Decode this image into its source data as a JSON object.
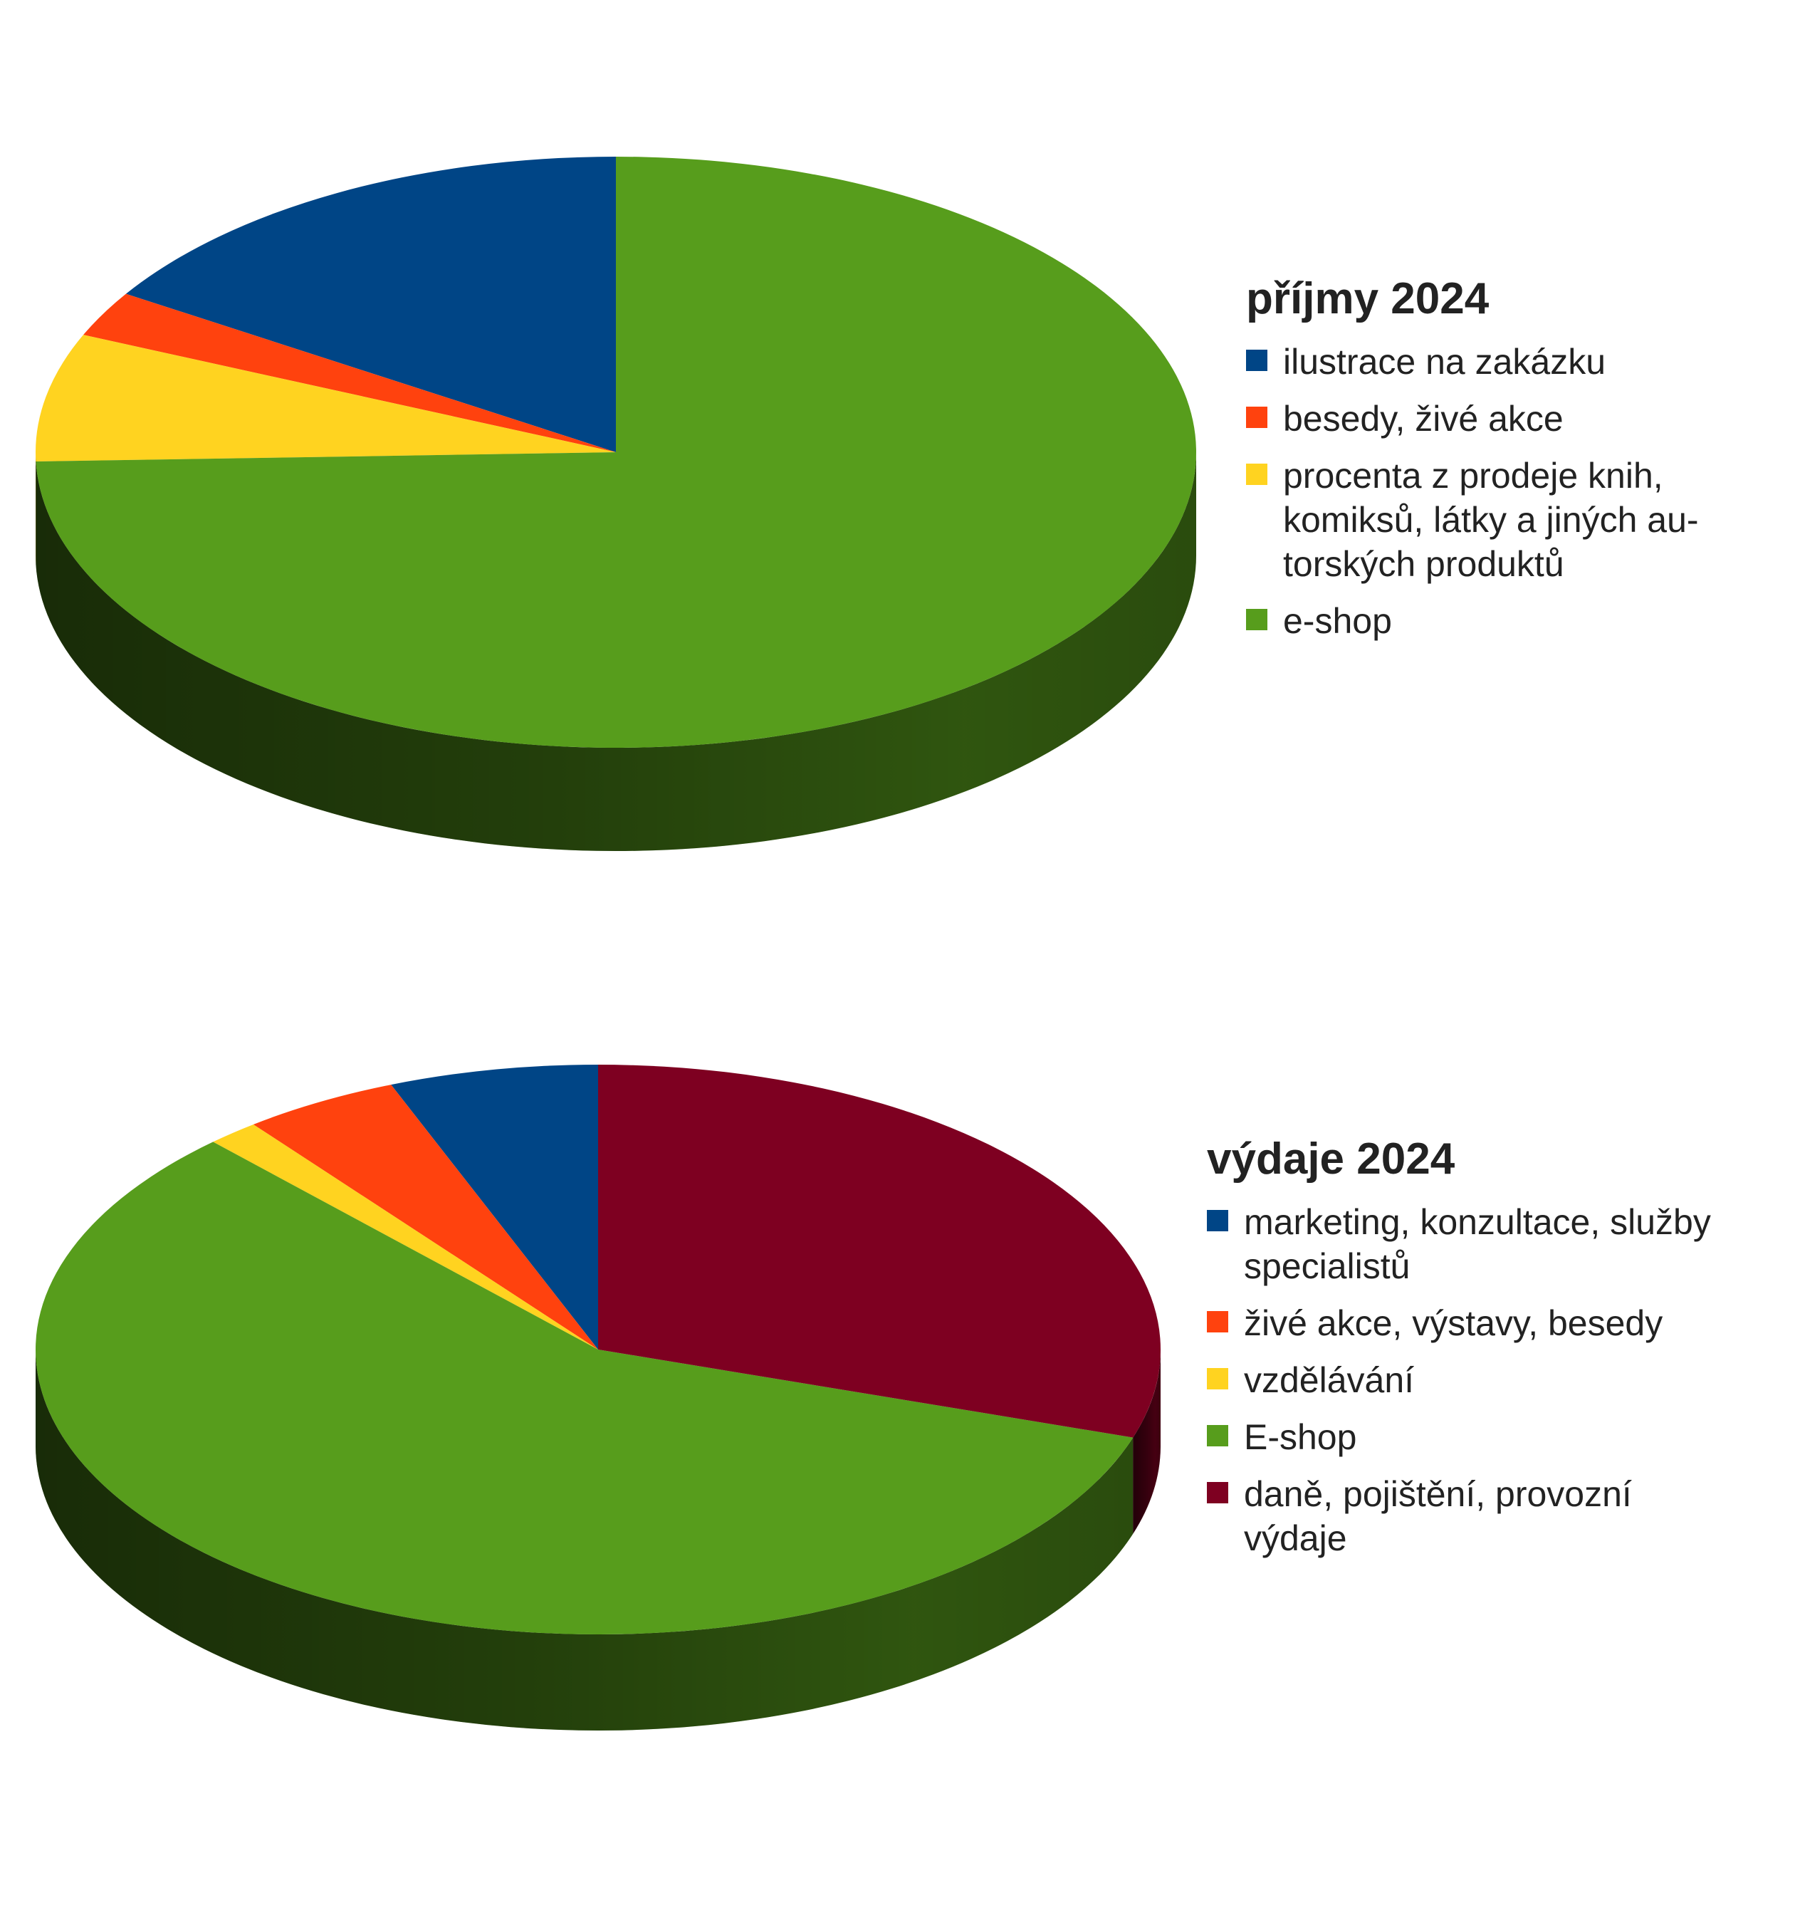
{
  "chart_data": [
    {
      "type": "pie",
      "title": "příjmy 2024",
      "slices": [
        {
          "label": "ilustrace na zakázku",
          "value": 16,
          "color": "#004586",
          "legend_lines": [
            "ilustrace na zakázku"
          ]
        },
        {
          "label": "besedy, živé akce",
          "value": 2.5,
          "color": "#ff420e",
          "legend_lines": [
            "besedy, živé akce"
          ]
        },
        {
          "label": "procenta z prodeje knih, komiksů, látky a jiných autorských produktů",
          "value": 7,
          "color": "#ffd320",
          "legend_lines": [
            "procenta z prodeje knih,",
            "komiksů, látky a jiných au-",
            "torských produktů"
          ]
        },
        {
          "label": "e-shop",
          "value": 74.5,
          "color": "#579d1c",
          "legend_lines": [
            "e-shop"
          ]
        }
      ]
    },
    {
      "type": "pie",
      "title": "výdaje 2024",
      "slices": [
        {
          "label": "marketing, konzultace, služby specialistů",
          "value": 6,
          "color": "#004586",
          "legend_lines": [
            "marketing, konzultace, služby",
            "specialistů"
          ]
        },
        {
          "label": "živé akce, výstavy, besedy",
          "value": 4.5,
          "color": "#ff420e",
          "legend_lines": [
            "živé akce, výstavy, besedy"
          ]
        },
        {
          "label": "vzdělávání",
          "value": 1.5,
          "color": "#ffd320",
          "legend_lines": [
            "vzdělávání"
          ]
        },
        {
          "label": "E-shop",
          "value": 58,
          "color": "#579d1c",
          "legend_lines": [
            "E-shop"
          ]
        },
        {
          "label": "daně, pojištění, provozní výdaje",
          "value": 30,
          "color": "#7e0021",
          "legend_lines": [
            "daně, pojištění, provozní",
            "výdaje"
          ]
        }
      ]
    }
  ]
}
